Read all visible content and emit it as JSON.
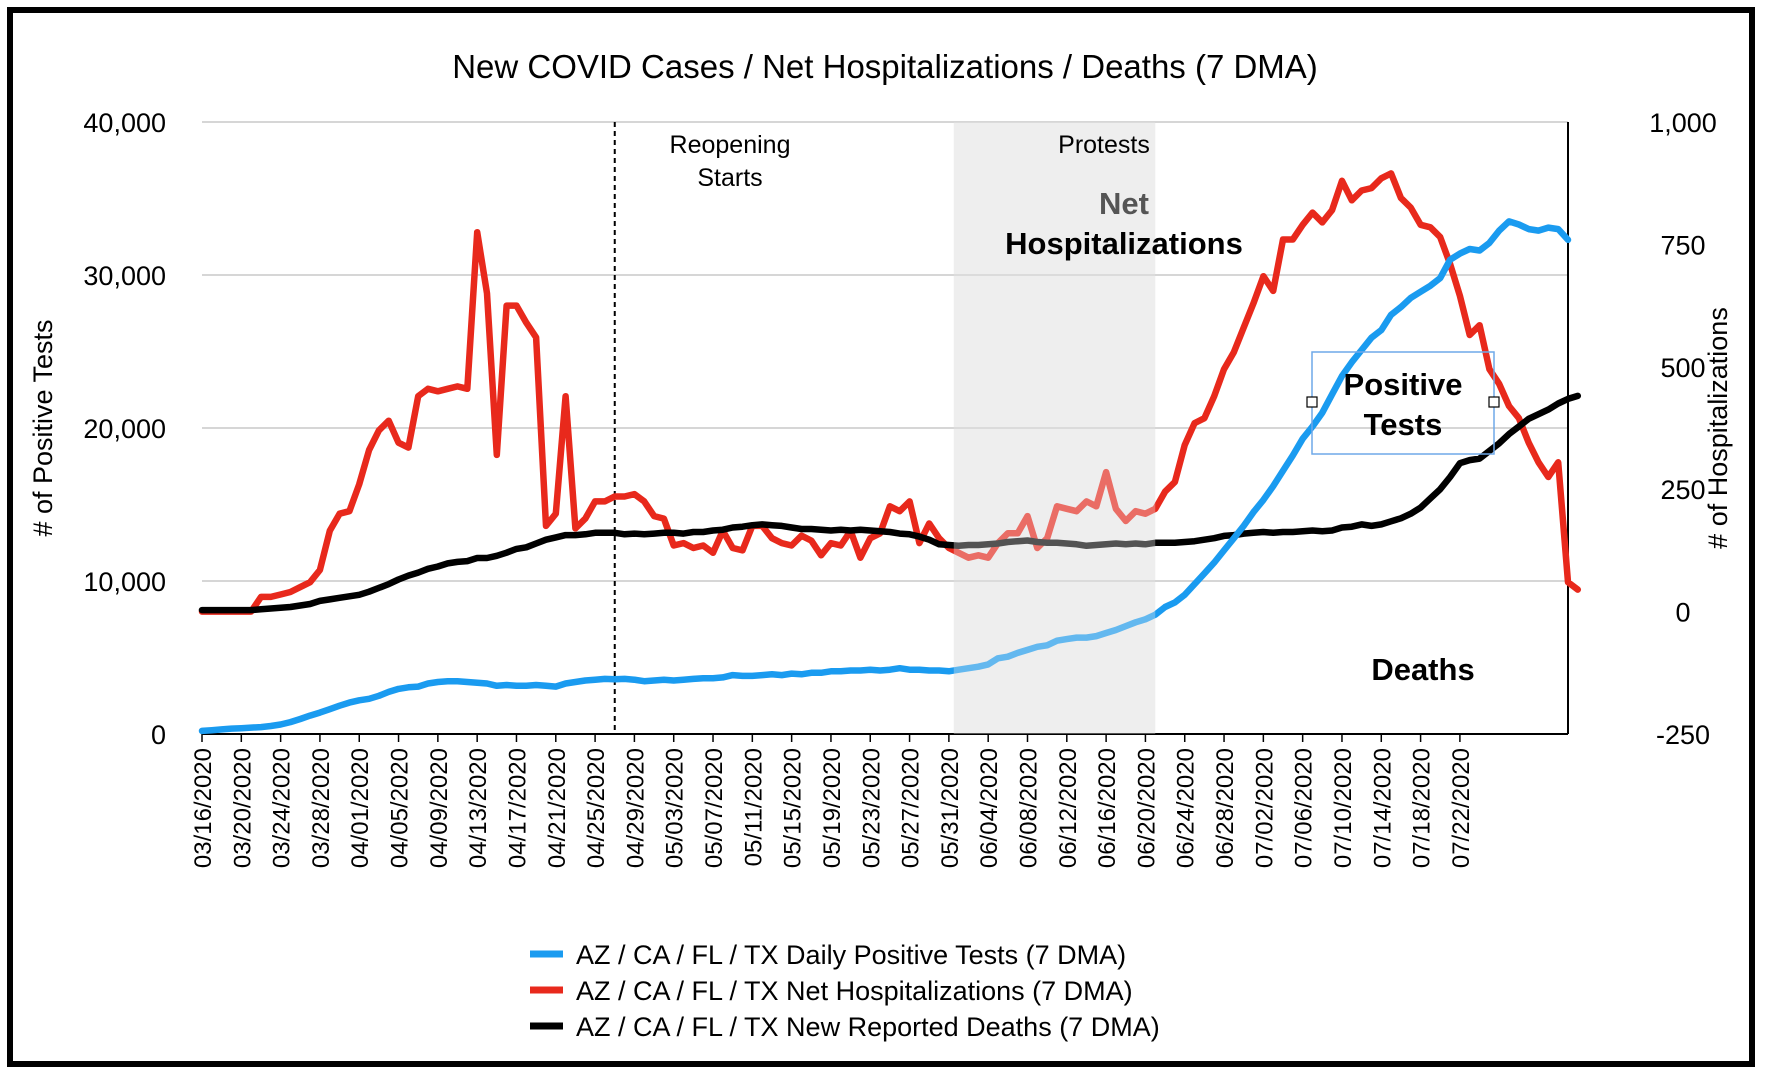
{
  "chart_data": {
    "type": "line",
    "title": "New COVID Cases / Net Hospitalizations / Deaths (7 DMA)",
    "ylabel_left": "# of Positive Tests",
    "ylabel_right": "# of Hospitalizations",
    "ylim_left": [
      0,
      40000
    ],
    "ylim_right": [
      -250,
      1000
    ],
    "yticks_left": [
      "0",
      "10,000",
      "20,000",
      "30,000",
      "40,000"
    ],
    "yticks_right": [
      "-250",
      "0",
      "250",
      "500",
      "750",
      "1,000"
    ],
    "grid": "horizontal",
    "legend_position": "bottom",
    "x_start": "03/16/2020",
    "x_end": "07/24/2020",
    "x_ticks": [
      "03/16/2020",
      "03/20/2020",
      "03/24/2020",
      "03/28/2020",
      "04/01/2020",
      "04/05/2020",
      "04/09/2020",
      "04/13/2020",
      "04/17/2020",
      "04/21/2020",
      "04/25/2020",
      "04/29/2020",
      "05/03/2020",
      "05/07/2020",
      "05/11/2020",
      "05/15/2020",
      "05/19/2020",
      "05/23/2020",
      "05/27/2020",
      "05/31/2020",
      "06/04/2020",
      "06/08/2020",
      "06/12/2020",
      "06/16/2020",
      "06/20/2020",
      "06/24/2020",
      "06/28/2020",
      "07/02/2020",
      "07/06/2020",
      "07/10/2020",
      "07/14/2020",
      "07/18/2020",
      "07/22/2020"
    ],
    "series": [
      {
        "name": "AZ / CA / FL / TX Daily Positive Tests (7 DMA)",
        "axis": "left",
        "color": "#1a9bf0",
        "values": [
          200,
          250,
          300,
          350,
          380,
          420,
          450,
          520,
          620,
          780,
          980,
          1200,
          1400,
          1620,
          1850,
          2050,
          2200,
          2300,
          2500,
          2750,
          2950,
          3050,
          3100,
          3300,
          3400,
          3450,
          3450,
          3400,
          3350,
          3300,
          3150,
          3200,
          3150,
          3150,
          3200,
          3150,
          3100,
          3300,
          3400,
          3500,
          3550,
          3600,
          3580,
          3600,
          3550,
          3450,
          3500,
          3550,
          3500,
          3550,
          3600,
          3650,
          3650,
          3700,
          3850,
          3800,
          3800,
          3850,
          3900,
          3850,
          3950,
          3900,
          4000,
          4000,
          4100,
          4100,
          4150,
          4150,
          4200,
          4150,
          4200,
          4300,
          4200,
          4200,
          4150,
          4150,
          4100,
          4200,
          4300,
          4400,
          4550,
          4950,
          5050,
          5300,
          5500,
          5700,
          5800,
          6100,
          6200,
          6300,
          6300,
          6400,
          6600,
          6800,
          7050,
          7300,
          7500,
          7800,
          8300,
          8600,
          9100,
          9800,
          10500,
          11200,
          12000,
          12800,
          13600,
          14500,
          15300,
          16200,
          17200,
          18200,
          19300,
          20100,
          21000,
          22200,
          23400,
          24300,
          25100,
          25900,
          26400,
          27400,
          27900,
          28500,
          28900,
          29300,
          29800,
          31000,
          31400,
          31700,
          31600,
          32100,
          32900,
          33500,
          33300,
          33000,
          32900,
          33100,
          33000,
          32300
        ]
      },
      {
        "name": "AZ / CA / FL / TX Net Hospitalizations (7 DMA)",
        "axis": "right",
        "color": "#e8291c",
        "values": [
          0,
          0,
          0,
          0,
          0,
          0,
          30,
          30,
          35,
          40,
          50,
          60,
          85,
          165,
          200,
          205,
          260,
          330,
          370,
          390,
          345,
          335,
          440,
          455,
          450,
          455,
          460,
          455,
          775,
          650,
          320,
          625,
          625,
          590,
          560,
          175,
          200,
          440,
          170,
          190,
          225,
          225,
          235,
          235,
          240,
          225,
          195,
          190,
          135,
          140,
          130,
          135,
          120,
          165,
          130,
          125,
          175,
          175,
          150,
          140,
          135,
          155,
          145,
          115,
          140,
          135,
          165,
          110,
          150,
          160,
          215,
          205,
          225,
          140,
          180,
          150,
          130,
          120,
          110,
          115,
          110,
          140,
          160,
          160,
          195,
          130,
          150,
          215,
          210,
          205,
          225,
          215,
          285,
          210,
          185,
          205,
          200,
          210,
          245,
          265,
          340,
          385,
          395,
          440,
          495,
          530,
          580,
          630,
          685,
          655,
          760,
          760,
          790,
          815,
          795,
          820,
          880,
          840,
          860,
          865,
          885,
          895,
          845,
          825,
          790,
          785,
          765,
          710,
          645,
          565,
          585,
          495,
          465,
          420,
          395,
          345,
          305,
          275,
          305,
          60,
          45
        ]
      },
      {
        "name": "AZ / CA / FL / TX New Reported Deaths (7 DMA)",
        "axis": "left",
        "color": "#000000",
        "values": [
          8100,
          8100,
          8100,
          8100,
          8100,
          8100,
          8150,
          8200,
          8250,
          8300,
          8400,
          8500,
          8700,
          8800,
          8900,
          9000,
          9100,
          9300,
          9550,
          9800,
          10100,
          10350,
          10550,
          10800,
          10950,
          11150,
          11250,
          11300,
          11500,
          11500,
          11650,
          11850,
          12100,
          12200,
          12450,
          12700,
          12850,
          13000,
          13000,
          13050,
          13150,
          13150,
          13150,
          13050,
          13100,
          13050,
          13100,
          13150,
          13150,
          13100,
          13200,
          13200,
          13300,
          13350,
          13500,
          13550,
          13650,
          13700,
          13650,
          13600,
          13500,
          13400,
          13400,
          13350,
          13300,
          13350,
          13300,
          13350,
          13300,
          13250,
          13200,
          13100,
          13050,
          12900,
          12700,
          12400,
          12350,
          12300,
          12350,
          12350,
          12400,
          12450,
          12550,
          12600,
          12650,
          12550,
          12500,
          12500,
          12450,
          12400,
          12300,
          12350,
          12400,
          12450,
          12400,
          12450,
          12400,
          12500,
          12500,
          12500,
          12550,
          12600,
          12700,
          12800,
          12950,
          13000,
          13100,
          13150,
          13200,
          13150,
          13200,
          13200,
          13250,
          13300,
          13250,
          13300,
          13500,
          13550,
          13700,
          13600,
          13700,
          13900,
          14100,
          14400,
          14800,
          15400,
          16000,
          16800,
          17700,
          17900,
          18000,
          18500,
          19000,
          19600,
          20100,
          20600,
          20900,
          21200,
          21600,
          21900,
          22100
        ]
      }
    ],
    "annotations": {
      "reopening": "Reopening\nStarts",
      "protests": "Protests",
      "net_hosp": "Net\nHospitalizations",
      "positive": "Positive\nTests",
      "deaths": "Deaths"
    }
  }
}
